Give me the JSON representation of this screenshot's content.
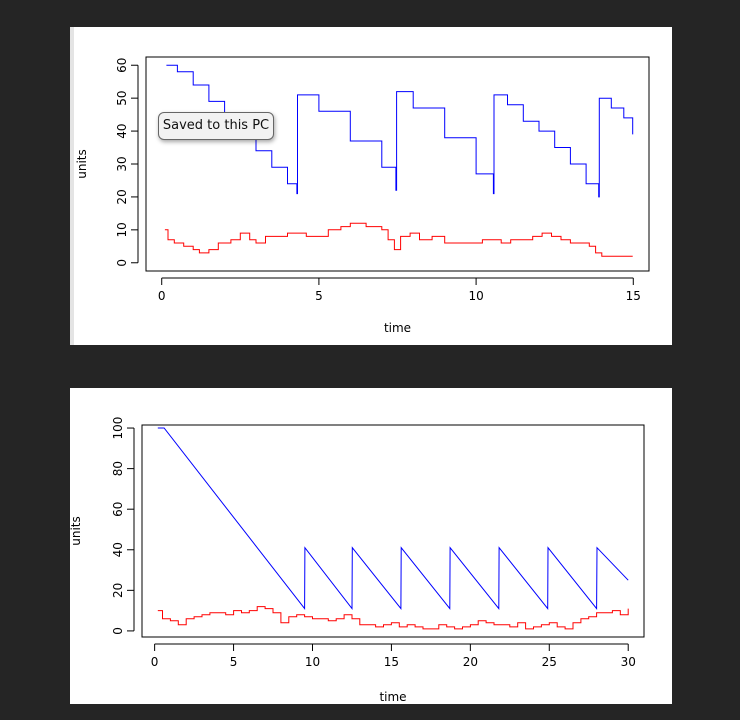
{
  "tooltip": {
    "text": "Saved to this PC"
  },
  "colors": {
    "series_a": "#0000ff",
    "series_b": "#ff0000"
  },
  "chart_data": [
    {
      "type": "line",
      "title": "",
      "xlabel": "time",
      "ylabel": "units",
      "xlim": [
        -0.5,
        15.5
      ],
      "ylim": [
        -2.5,
        62.5
      ],
      "xticks": [
        0,
        5,
        10,
        15
      ],
      "yticks": [
        0,
        10,
        20,
        30,
        40,
        50,
        60
      ],
      "grid": false,
      "series": [
        {
          "color": "#0000ff",
          "step": true,
          "x": [
            0.15,
            0.5,
            1.0,
            1.5,
            2.0,
            2.5,
            3.0,
            3.5,
            4.0,
            4.3,
            4.32,
            5.0,
            6.0,
            7.0,
            7.45,
            7.47,
            8.0,
            9.0,
            10.0,
            10.55,
            10.57,
            11.0,
            11.5,
            12.0,
            12.5,
            13.0,
            13.5,
            13.9,
            13.92,
            14.3,
            14.7,
            14.98
          ],
          "y": [
            60,
            58,
            54,
            49,
            44,
            40,
            34,
            29,
            24,
            21,
            51,
            46,
            37,
            29,
            22,
            52,
            47,
            38,
            27,
            21,
            51,
            48,
            43,
            40,
            35,
            30,
            24,
            20,
            50,
            47,
            44,
            39
          ]
        },
        {
          "color": "#ff0000",
          "step": true,
          "x": [
            0.1,
            0.2,
            0.4,
            0.7,
            1.0,
            1.2,
            1.5,
            1.8,
            2.2,
            2.5,
            2.8,
            3.0,
            3.3,
            3.6,
            4.0,
            4.3,
            4.6,
            5.0,
            5.3,
            5.7,
            6.0,
            6.5,
            7.0,
            7.2,
            7.4,
            7.6,
            7.9,
            8.2,
            8.6,
            9.0,
            9.4,
            9.8,
            10.2,
            10.5,
            10.8,
            11.1,
            11.4,
            11.8,
            12.1,
            12.4,
            12.7,
            13.0,
            13.3,
            13.6,
            13.8,
            14.0,
            14.3,
            14.6,
            14.98
          ],
          "y": [
            10,
            7,
            6,
            5,
            4,
            3,
            4,
            6,
            7,
            9,
            7,
            6,
            8,
            8,
            9,
            9,
            8,
            8,
            10,
            11,
            12,
            11,
            10,
            7,
            4,
            8,
            9,
            7,
            8,
            6,
            6,
            6,
            7,
            7,
            6,
            7,
            7,
            8,
            9,
            8,
            7,
            6,
            6,
            5,
            3,
            2,
            2,
            2,
            2
          ]
        }
      ]
    },
    {
      "type": "line",
      "title": "",
      "xlabel": "time",
      "ylabel": "units",
      "xlim": [
        -0.8,
        31.0
      ],
      "ylim": [
        -3.0,
        101.5
      ],
      "xticks": [
        0,
        5,
        10,
        15,
        20,
        25,
        30
      ],
      "yticks": [
        0,
        20,
        40,
        60,
        80,
        100
      ],
      "grid": false,
      "series": [
        {
          "color": "#0000ff",
          "step": false,
          "x": [
            0.2,
            0.6,
            9.5,
            9.52,
            12.5,
            12.52,
            15.6,
            15.62,
            18.7,
            18.72,
            21.8,
            21.82,
            24.9,
            24.92,
            28.0,
            28.02,
            30.0
          ],
          "y": [
            100,
            100,
            11,
            41,
            11,
            41,
            11,
            41,
            11,
            41,
            11,
            41,
            11,
            41,
            11,
            41,
            25
          ]
        },
        {
          "color": "#ff0000",
          "step": true,
          "x": [
            0.2,
            0.5,
            1.0,
            1.5,
            2.0,
            2.5,
            3.0,
            3.5,
            4.0,
            4.5,
            5.0,
            5.5,
            6.0,
            6.5,
            7.0,
            7.5,
            8.0,
            8.5,
            9.0,
            9.5,
            10.0,
            10.5,
            11.0,
            11.5,
            12.0,
            12.5,
            13.0,
            13.5,
            14.0,
            14.5,
            15.0,
            15.5,
            16.0,
            16.5,
            17.0,
            17.5,
            18.0,
            18.5,
            19.0,
            19.5,
            20.0,
            20.5,
            21.0,
            21.5,
            22.0,
            22.5,
            23.0,
            23.5,
            24.0,
            24.5,
            25.0,
            25.5,
            26.0,
            26.5,
            27.0,
            27.5,
            28.0,
            28.5,
            29.0,
            29.5,
            30.0
          ],
          "y": [
            10,
            6,
            5,
            3,
            6,
            7,
            8,
            9,
            9,
            8,
            10,
            9,
            10,
            12,
            11,
            9,
            4,
            7,
            8,
            7,
            6,
            6,
            5,
            6,
            8,
            6,
            3,
            3,
            2,
            3,
            4,
            2,
            3,
            2,
            1,
            1,
            3,
            2,
            1,
            2,
            3,
            5,
            4,
            3,
            3,
            2,
            4,
            1,
            2,
            3,
            4,
            2,
            1,
            4,
            6,
            7,
            9,
            9,
            10,
            8,
            11
          ]
        }
      ]
    }
  ]
}
